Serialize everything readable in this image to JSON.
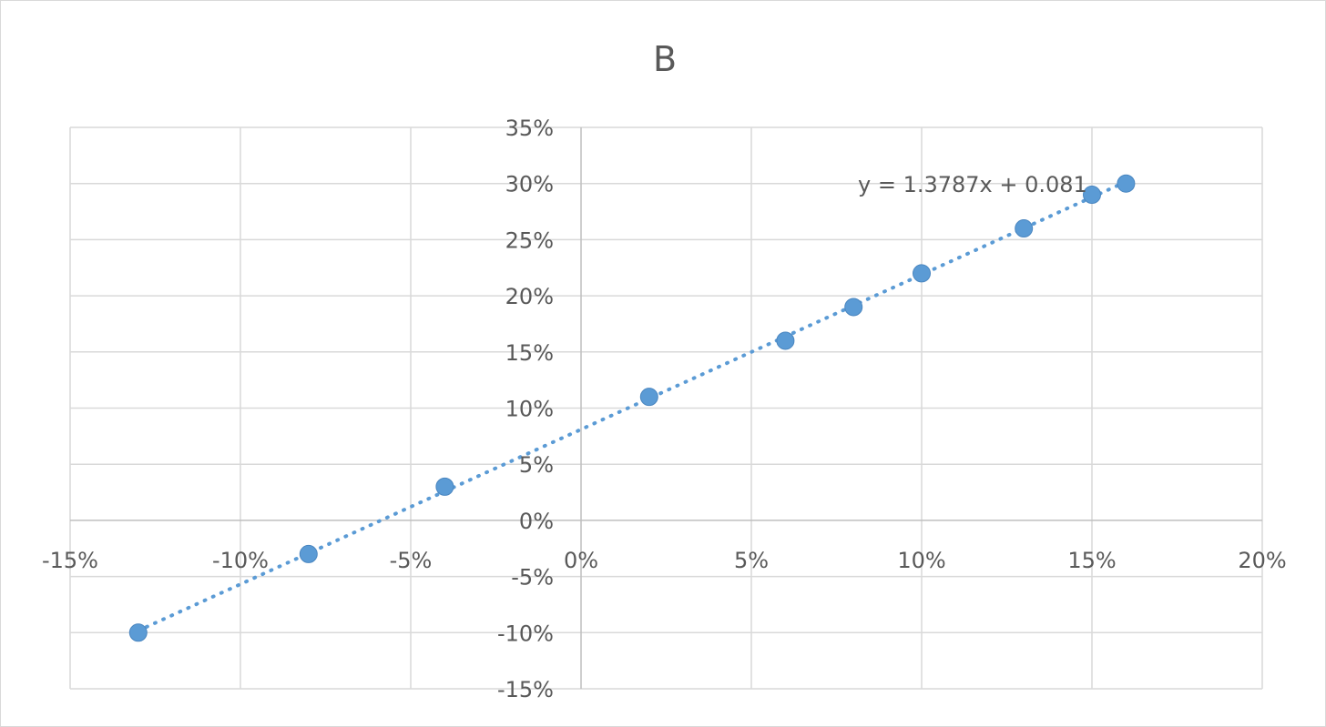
{
  "chart_data": {
    "type": "scatter",
    "title": "B",
    "xlabel": "",
    "ylabel": "",
    "xlim": [
      -15,
      20
    ],
    "ylim": [
      -15,
      35
    ],
    "x_ticks": [
      -15,
      -10,
      -5,
      0,
      5,
      10,
      15,
      20
    ],
    "y_ticks": [
      -15,
      -10,
      -5,
      0,
      5,
      10,
      15,
      20,
      25,
      30,
      35
    ],
    "tick_suffix": "%",
    "grid": true,
    "legend": "none",
    "marker_color": "#5b9bd5",
    "series": [
      {
        "x": [
          -13,
          -8,
          -4,
          2,
          6,
          8,
          10,
          13,
          15,
          16
        ],
        "y": [
          -10,
          -3,
          3,
          11,
          16,
          19,
          22,
          26,
          29,
          30
        ]
      }
    ],
    "trendline": {
      "type": "linear",
      "style": "dotted",
      "slope": 1.3787,
      "intercept": 8.1,
      "label": "y = 1.3787x + 0.081"
    }
  }
}
